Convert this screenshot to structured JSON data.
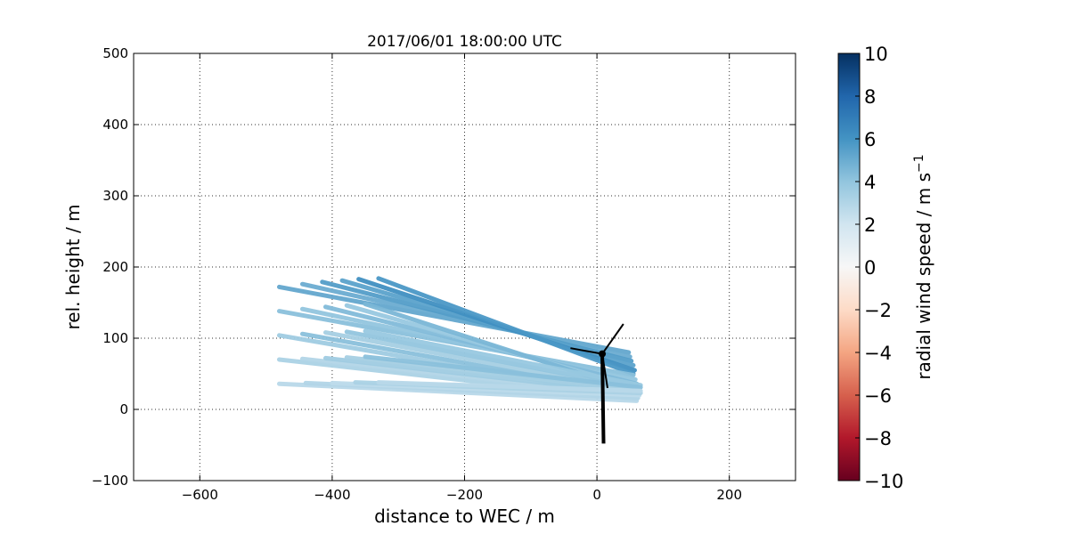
{
  "chart_data": {
    "type": "line",
    "title": "2017/06/01 18:00:00 UTC",
    "xlabel": "distance to WEC / m",
    "ylabel": "rel. height / m",
    "xlim": [
      -700,
      300
    ],
    "ylim": [
      -100,
      500
    ],
    "xticks": [
      -600,
      -400,
      -200,
      0,
      200
    ],
    "yticks": [
      -100,
      0,
      100,
      200,
      300,
      400,
      500
    ],
    "xtick_labels": [
      "−600",
      "−400",
      "−200",
      "0",
      "200"
    ],
    "ytick_labels": [
      "−100",
      "0",
      "100",
      "200",
      "300",
      "400",
      "500"
    ],
    "grid": true,
    "colorbar": {
      "label": "radial wind speed / m s",
      "label_superscript": "−1",
      "range": [
        -10,
        10
      ],
      "ticks": [
        10,
        8,
        6,
        4,
        2,
        0,
        -2,
        -4,
        -6,
        -8,
        -10
      ],
      "tick_labels": [
        "10",
        "8",
        "6",
        "4",
        "2",
        "0",
        "−2",
        "−4",
        "−6",
        "−8",
        "−10"
      ],
      "colormap": "RdBu",
      "stops": [
        "#67001f",
        "#b2182b",
        "#d6604d",
        "#f4a582",
        "#fddbc7",
        "#f7f7f7",
        "#d1e5f0",
        "#92c5de",
        "#4393c3",
        "#2166ac",
        "#053061"
      ]
    },
    "series": [
      {
        "x": [
          -480,
          48
        ],
        "y": [
          172,
          80
        ],
        "v": 5.2
      },
      {
        "x": [
          -445,
          50
        ],
        "y": [
          176,
          74
        ],
        "v": 5.0
      },
      {
        "x": [
          -415,
          52
        ],
        "y": [
          179,
          68
        ],
        "v": 5.6
      },
      {
        "x": [
          -385,
          55
        ],
        "y": [
          181,
          62
        ],
        "v": 5.4
      },
      {
        "x": [
          -360,
          57
        ],
        "y": [
          183,
          55
        ],
        "v": 6.2
      },
      {
        "x": [
          -330,
          55
        ],
        "y": [
          184,
          50
        ],
        "v": 5.8
      },
      {
        "x": [
          -480,
          55
        ],
        "y": [
          138,
          48
        ],
        "v": 4.2
      },
      {
        "x": [
          -445,
          58
        ],
        "y": [
          141,
          42
        ],
        "v": 4.0
      },
      {
        "x": [
          -410,
          60
        ],
        "y": [
          144,
          36
        ],
        "v": 4.4
      },
      {
        "x": [
          -378,
          62
        ],
        "y": [
          146,
          30
        ],
        "v": 3.8
      },
      {
        "x": [
          -350,
          63
        ],
        "y": [
          148,
          24
        ],
        "v": 4.6
      },
      {
        "x": [
          -480,
          58
        ],
        "y": [
          104,
          18
        ],
        "v": 3.6
      },
      {
        "x": [
          -445,
          60
        ],
        "y": [
          106,
          22
        ],
        "v": 4.2
      },
      {
        "x": [
          -410,
          62
        ],
        "y": [
          108,
          26
        ],
        "v": 3.4
      },
      {
        "x": [
          -378,
          64
        ],
        "y": [
          109,
          30
        ],
        "v": 4.0
      },
      {
        "x": [
          -350,
          66
        ],
        "y": [
          110,
          34
        ],
        "v": 3.8
      },
      {
        "x": [
          -480,
          60
        ],
        "y": [
          70,
          14
        ],
        "v": 3.2
      },
      {
        "x": [
          -445,
          62
        ],
        "y": [
          71,
          18
        ],
        "v": 3.0
      },
      {
        "x": [
          -410,
          64
        ],
        "y": [
          72,
          22
        ],
        "v": 3.6
      },
      {
        "x": [
          -378,
          65
        ],
        "y": [
          73,
          27
        ],
        "v": 3.4
      },
      {
        "x": [
          -350,
          66
        ],
        "y": [
          74,
          31
        ],
        "v": 4.2
      },
      {
        "x": [
          -480,
          60
        ],
        "y": [
          36,
          12
        ],
        "v": 2.8
      },
      {
        "x": [
          -440,
          62
        ],
        "y": [
          37,
          16
        ],
        "v": 3.0
      },
      {
        "x": [
          -400,
          64
        ],
        "y": [
          37,
          20
        ],
        "v": 2.6
      },
      {
        "x": [
          -365,
          66
        ],
        "y": [
          38,
          23
        ],
        "v": 3.2
      },
      {
        "x": [
          -330,
          66
        ],
        "y": [
          38,
          26
        ],
        "v": 2.8
      }
    ]
  }
}
